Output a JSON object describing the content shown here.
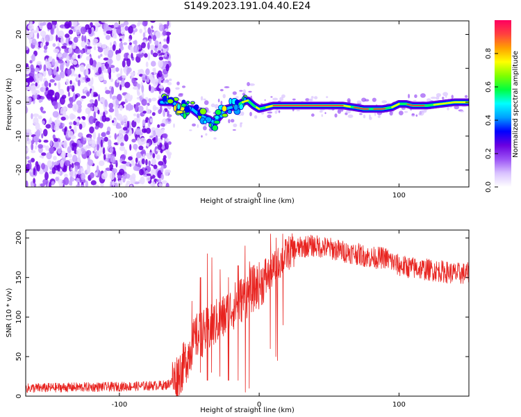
{
  "title": "S149.2023.191.04.40.E24",
  "chart_data": [
    {
      "type": "heatmap",
      "xlabel": "Height of straight line (km)",
      "ylabel": "Frequency (Hz)",
      "xlim": [
        -167,
        150
      ],
      "ylim": [
        -25,
        24
      ],
      "x_ticks": [
        -100,
        0,
        100
      ],
      "y_ticks": [
        -20,
        -10,
        0,
        10,
        20
      ],
      "x_tick_labels": [
        "-100",
        "0",
        "100"
      ],
      "y_tick_labels": [
        "-20",
        "-10",
        "0",
        "10",
        "20"
      ],
      "grid": false,
      "ridge": {
        "x": [
          -70,
          -62,
          -55,
          -48,
          -42,
          -36,
          -32,
          -28,
          -24,
          -20,
          -16,
          -12,
          -8,
          -4,
          0,
          5,
          10,
          20,
          30,
          40,
          50,
          60,
          68,
          75,
          80,
          88,
          95,
          100,
          105,
          110,
          120,
          130,
          140,
          150
        ],
        "y": [
          0,
          0,
          -2,
          -2,
          -4,
          -5,
          -6,
          -4,
          -2,
          -1.5,
          -1,
          0,
          0.5,
          -1,
          -2,
          -1.5,
          -1,
          -1,
          -1,
          -1,
          -1,
          -1,
          -1.5,
          -2,
          -2,
          -2,
          -1.5,
          -0.5,
          -0.5,
          -1,
          -1,
          -0.5,
          0,
          0
        ]
      },
      "noise_region_x": [
        -167,
        -67
      ],
      "colorbar": {
        "label": "Normalized spectral amplitude",
        "range": [
          0,
          1
        ],
        "ticks": [
          0.0,
          0.2,
          0.4,
          0.6,
          0.8
        ],
        "tick_labels": [
          "0.0",
          "0.2",
          "0.4",
          "0.6",
          "0.8"
        ],
        "colormap": [
          "#ffffff",
          "#d9c2ff",
          "#9b52f5",
          "#6a00e0",
          "#0000ff",
          "#00a0ff",
          "#00ffff",
          "#00ff40",
          "#80ff00",
          "#ffff00",
          "#ffa000",
          "#ff4040",
          "#ff0060"
        ]
      }
    },
    {
      "type": "line",
      "xlabel": "Height of straight line (km)",
      "ylabel": "SNR (10 * v/v)",
      "xlim": [
        -167,
        150
      ],
      "ylim": [
        0,
        210
      ],
      "x_ticks": [
        -100,
        0,
        100
      ],
      "y_ticks": [
        0,
        50,
        100,
        150,
        200
      ],
      "x_tick_labels": [
        "-100",
        "0",
        "100"
      ],
      "y_tick_labels": [
        "0",
        "50",
        "100",
        "150",
        "200"
      ],
      "grid": false,
      "series": [
        {
          "color": "#e8231f",
          "envelope_x": [
            -167,
            -140,
            -100,
            -80,
            -66,
            -60,
            -55,
            -50,
            -45,
            -40,
            -35,
            -30,
            -25,
            -20,
            -15,
            -10,
            -5,
            0,
            5,
            10,
            15,
            20,
            25,
            30,
            35,
            40,
            50,
            60,
            70,
            80,
            90,
            95,
            100,
            110,
            120,
            130,
            140,
            150
          ],
          "envelope_y": [
            10,
            11,
            12,
            13,
            14,
            22,
            35,
            55,
            75,
            80,
            85,
            95,
            100,
            110,
            120,
            125,
            135,
            140,
            150,
            160,
            170,
            180,
            185,
            188,
            190,
            190,
            187,
            183,
            180,
            175,
            175,
            170,
            165,
            162,
            160,
            158,
            155,
            155
          ],
          "spikes": [
            {
              "x": -48,
              "lo": 40,
              "hi": 120
            },
            {
              "x": -42,
              "lo": 30,
              "hi": 150
            },
            {
              "x": -37,
              "lo": 20,
              "hi": 180
            },
            {
              "x": -34,
              "lo": 30,
              "hi": 175
            },
            {
              "x": -28,
              "lo": 25,
              "hi": 160
            },
            {
              "x": -22,
              "lo": 20,
              "hi": 150
            },
            {
              "x": -15,
              "lo": 20,
              "hi": 165
            },
            {
              "x": -10,
              "lo": 5,
              "hi": 190
            },
            {
              "x": -7,
              "lo": 10,
              "hi": 170
            },
            {
              "x": 8,
              "lo": 60,
              "hi": 205
            },
            {
              "x": 12,
              "lo": 50,
              "hi": 200
            },
            {
              "x": 13,
              "lo": 45,
              "hi": 110
            },
            {
              "x": 17,
              "lo": 90,
              "hi": 205
            }
          ]
        }
      ]
    }
  ]
}
